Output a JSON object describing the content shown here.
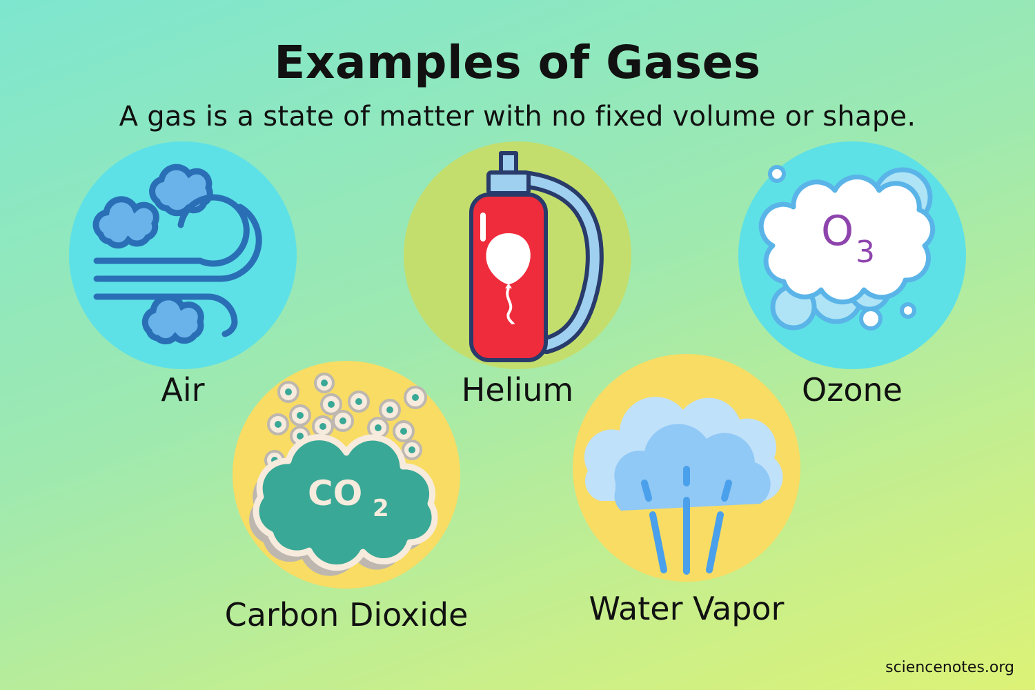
{
  "header": {
    "title": "Examples of Gases",
    "subtitle": "A gas is a state of matter with no fixed volume or shape."
  },
  "gases": [
    {
      "label": "Air",
      "icon": "wind-clouds-icon"
    },
    {
      "label": "Helium",
      "icon": "helium-tank-icon"
    },
    {
      "label": "Ozone",
      "icon": "ozone-cloud-icon",
      "formula": [
        "O",
        "3"
      ]
    },
    {
      "label": "Carbon Dioxide",
      "icon": "co2-cloud-icon",
      "formula": [
        "CO",
        "2"
      ]
    },
    {
      "label": "Water Vapor",
      "icon": "water-vapor-icon"
    }
  ],
  "footer": {
    "credit": "sciencenotes.org"
  },
  "colors": {
    "air_circle": "#5ee1e6",
    "helium_circle": "#c3de6c",
    "ozone_circle": "#5ee1e6",
    "co2_circle": "#f8dc63",
    "vapor_circle": "#f8dc63",
    "tank_red": "#ef2c3c",
    "ozone_text": "#8e44ad",
    "co2_green": "#3aa896"
  }
}
